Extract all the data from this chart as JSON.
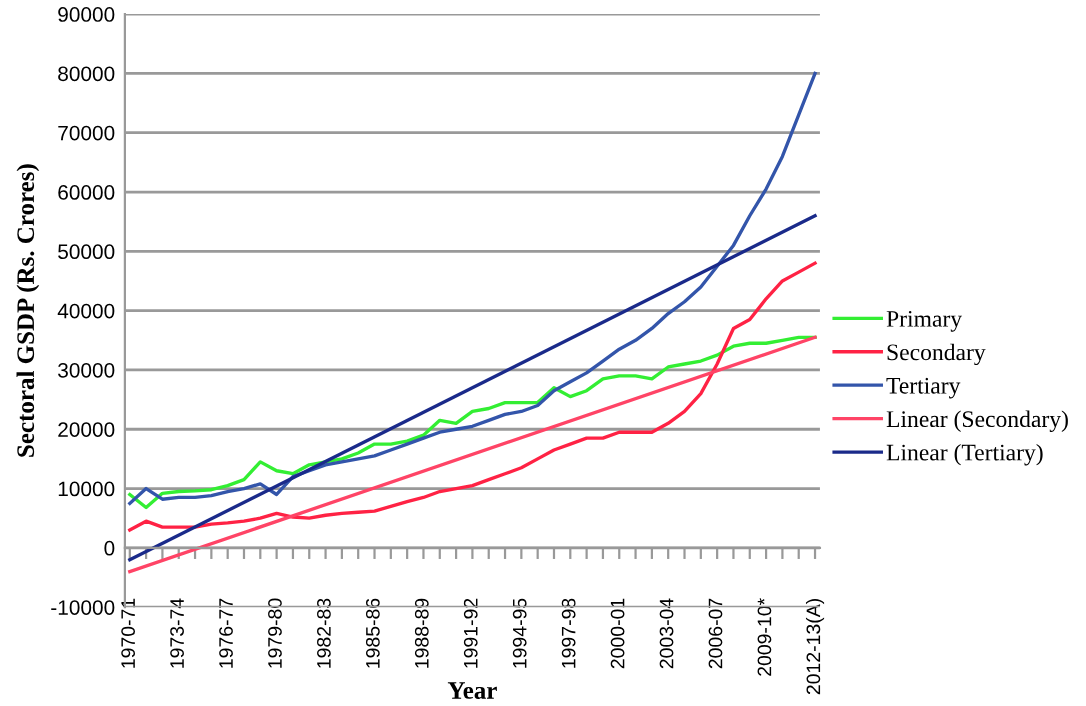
{
  "chart_data": {
    "type": "line",
    "xlabel": "Year",
    "ylabel": "Sectoral GSDP (Rs. Crores)",
    "categories": [
      "1970-71",
      null,
      null,
      "1973-74",
      null,
      null,
      "1976-77",
      null,
      null,
      "1979-80",
      null,
      null,
      "1982-83",
      null,
      null,
      "1985-86",
      null,
      null,
      "1988-89",
      null,
      null,
      "1991-92",
      null,
      null,
      "1994-95",
      null,
      null,
      "1997-98",
      null,
      null,
      "2000-01",
      null,
      null,
      "2003-04",
      null,
      null,
      "2006-07",
      null,
      null,
      "2009-10*",
      null,
      null,
      "2012-13(A)"
    ],
    "series": [
      {
        "name": "Primary",
        "color": "#33ee33",
        "values": [
          9000,
          6800,
          9200,
          9500,
          9600,
          9800,
          10500,
          11500,
          14500,
          13000,
          12500,
          14000,
          14500,
          15000,
          16000,
          17500,
          17500,
          18000,
          19000,
          21500,
          21000,
          23000,
          23500,
          24500,
          24500,
          24500,
          27000,
          25500,
          26500,
          28500,
          29000,
          29000,
          28500,
          30500,
          31000,
          31500,
          32500,
          34000,
          34500,
          34500,
          35000,
          35500,
          35500
        ]
      },
      {
        "name": "Secondary",
        "color": "#ff2244",
        "values": [
          3000,
          4500,
          3500,
          3500,
          3500,
          4000,
          4200,
          4500,
          5000,
          5800,
          5200,
          5000,
          5500,
          5800,
          6000,
          6200,
          7000,
          7800,
          8500,
          9500,
          10000,
          10500,
          11500,
          12500,
          13500,
          15000,
          16500,
          17500,
          18500,
          18500,
          19500,
          19500,
          19500,
          21000,
          23000,
          26000,
          31000,
          37000,
          38500,
          42000,
          45000,
          46500,
          48000
        ]
      },
      {
        "name": "Tertiary",
        "color": "#3355aa",
        "values": [
          7500,
          10000,
          8200,
          8500,
          8500,
          8800,
          9500,
          10000,
          10800,
          9000,
          12000,
          13000,
          14000,
          14500,
          15000,
          15500,
          16500,
          17500,
          18500,
          19500,
          20000,
          20500,
          21500,
          22500,
          23000,
          24000,
          26500,
          28000,
          29500,
          31500,
          33500,
          35000,
          37000,
          39500,
          41500,
          44000,
          47500,
          51000,
          56000,
          60500,
          66000,
          73000,
          80000
        ]
      },
      {
        "name": "Linear (Secondary)",
        "color": "#ff4466",
        "x": [
          "1970-71",
          "2012-13(A)"
        ],
        "values": [
          -4000,
          35500
        ]
      },
      {
        "name": "Linear (Tertiary)",
        "color": "#1a2a8a",
        "x": [
          "1970-71",
          "2012-13(A)"
        ],
        "values": [
          -2000,
          56000
        ]
      }
    ],
    "ylim": [
      -10000,
      90000
    ],
    "yticks": [
      -10000,
      0,
      10000,
      20000,
      30000,
      40000,
      50000,
      60000,
      70000,
      80000,
      90000
    ],
    "grid": "y",
    "legend": "right",
    "marker": "none",
    "line_style": "solid"
  }
}
